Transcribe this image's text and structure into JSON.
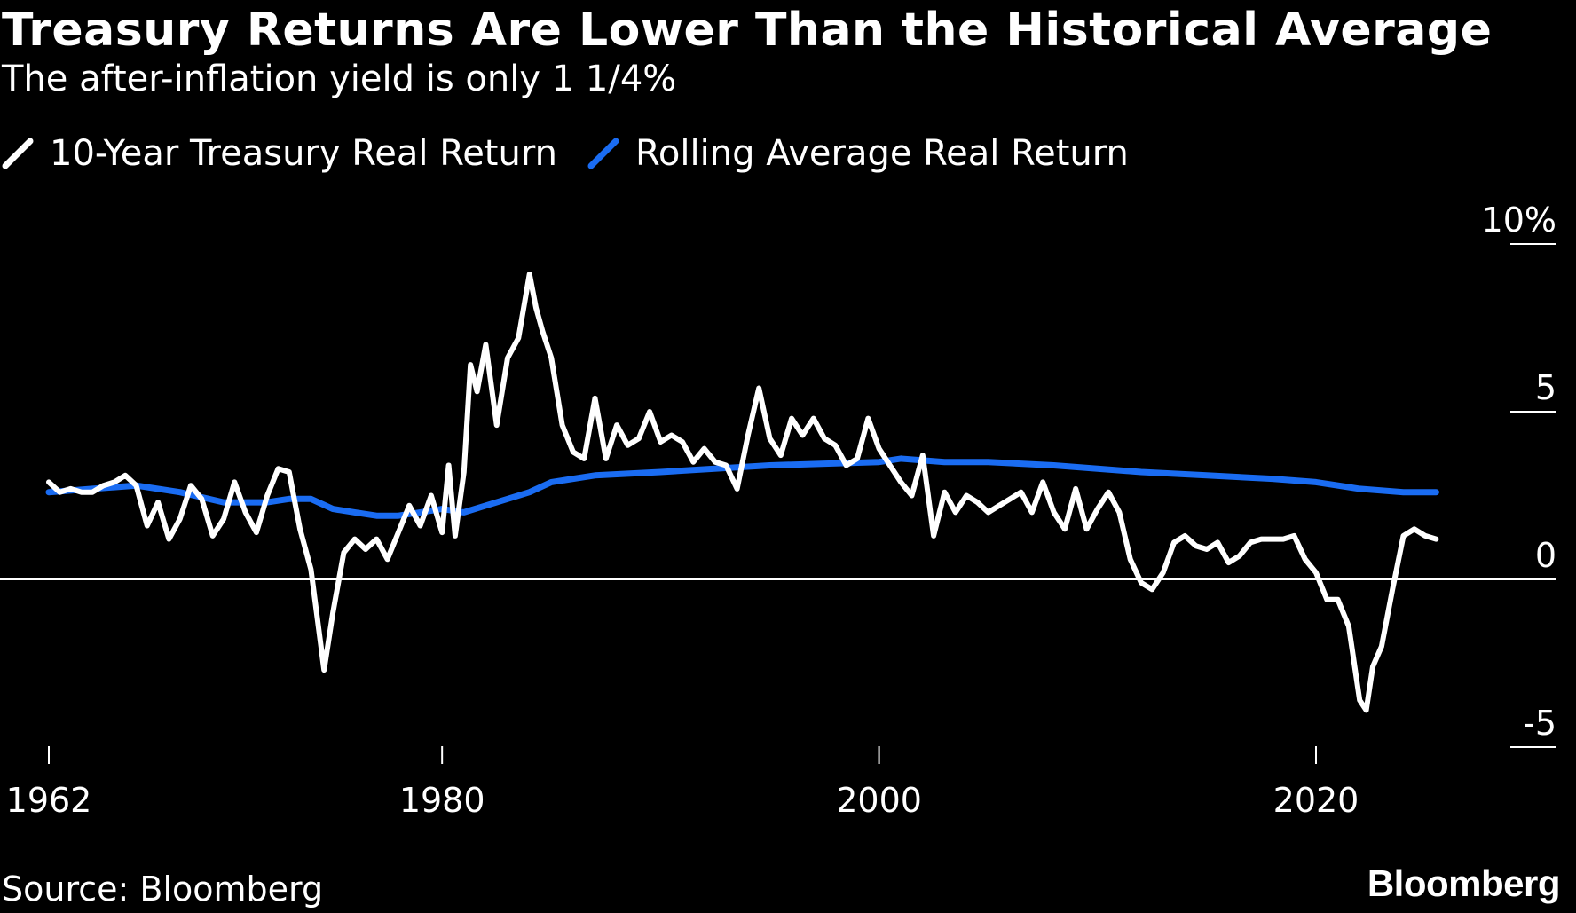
{
  "title": "Treasury Returns Are Lower Than the Historical Average",
  "subtitle": "The after-inflation yield is only 1 1/4%",
  "source": "Source: Bloomberg",
  "brand": "Bloomberg",
  "colors": {
    "background": "#000000",
    "treasury": "#ffffff",
    "rolling": "#1a6cf2",
    "zero_line": "#ffffff"
  },
  "chart_data": {
    "type": "line",
    "title": "Treasury Returns Are Lower Than the Historical Average",
    "subtitle": "The after-inflation yield is only 1 1/4%",
    "xlabel": "",
    "ylabel": "",
    "xlim": [
      1962,
      2026
    ],
    "ylim": [
      -5,
      10
    ],
    "x_ticks": [
      1962,
      1980,
      2000,
      2020
    ],
    "x_tick_labels": [
      "1962",
      "1980",
      "2000",
      "2020"
    ],
    "y_ticks": [
      10,
      5,
      0,
      -5
    ],
    "y_tick_labels": [
      "10%",
      "5",
      "0",
      "-5"
    ],
    "grid": false,
    "legend_position": "top-left",
    "series": [
      {
        "name": "10-Year Treasury Real Return",
        "color": "#ffffff",
        "x": [
          1962.0,
          1962.5,
          1963.0,
          1963.5,
          1964.0,
          1964.5,
          1965.0,
          1965.5,
          1966.0,
          1966.5,
          1967.0,
          1967.5,
          1968.0,
          1968.5,
          1969.0,
          1969.5,
          1970.0,
          1970.5,
          1971.0,
          1971.5,
          1972.0,
          1972.5,
          1973.0,
          1973.5,
          1974.0,
          1974.3,
          1974.6,
          1975.0,
          1975.5,
          1976.0,
          1976.5,
          1977.0,
          1977.5,
          1978.0,
          1978.5,
          1979.0,
          1979.5,
          1980.0,
          1980.3,
          1980.6,
          1981.0,
          1981.3,
          1981.6,
          1982.0,
          1982.5,
          1983.0,
          1983.5,
          1984.0,
          1984.3,
          1984.6,
          1985.0,
          1985.5,
          1986.0,
          1986.5,
          1987.0,
          1987.5,
          1988.0,
          1988.5,
          1989.0,
          1989.5,
          1990.0,
          1990.5,
          1991.0,
          1991.5,
          1992.0,
          1992.5,
          1993.0,
          1993.5,
          1994.0,
          1994.5,
          1995.0,
          1995.5,
          1996.0,
          1996.5,
          1997.0,
          1997.5,
          1998.0,
          1998.5,
          1999.0,
          1999.5,
          2000.0,
          2000.5,
          2001.0,
          2001.5,
          2002.0,
          2002.5,
          2003.0,
          2003.5,
          2004.0,
          2004.5,
          2005.0,
          2005.5,
          2006.0,
          2006.5,
          2007.0,
          2007.5,
          2008.0,
          2008.5,
          2009.0,
          2009.5,
          2010.0,
          2010.5,
          2011.0,
          2011.5,
          2012.0,
          2012.5,
          2013.0,
          2013.5,
          2014.0,
          2014.5,
          2015.0,
          2015.5,
          2016.0,
          2016.5,
          2017.0,
          2017.5,
          2018.0,
          2018.5,
          2019.0,
          2019.5,
          2020.0,
          2020.5,
          2021.0,
          2021.5,
          2022.0,
          2022.3,
          2022.6,
          2023.0,
          2023.5,
          2024.0,
          2024.5,
          2025.0,
          2025.5
        ],
        "y": [
          2.9,
          2.6,
          2.7,
          2.6,
          2.6,
          2.8,
          2.9,
          3.1,
          2.8,
          1.6,
          2.3,
          1.2,
          1.8,
          2.8,
          2.4,
          1.3,
          1.8,
          2.9,
          2.0,
          1.4,
          2.5,
          3.3,
          3.2,
          1.5,
          0.3,
          -1.2,
          -2.7,
          -1.0,
          0.8,
          1.2,
          0.9,
          1.2,
          0.6,
          1.4,
          2.2,
          1.6,
          2.5,
          1.4,
          3.4,
          1.3,
          3.2,
          6.4,
          5.6,
          7.0,
          4.6,
          6.6,
          7.2,
          9.1,
          8.1,
          7.4,
          6.6,
          4.6,
          3.8,
          3.6,
          5.4,
          3.6,
          4.6,
          4.0,
          4.2,
          5.0,
          4.1,
          4.3,
          4.1,
          3.5,
          3.9,
          3.5,
          3.4,
          2.7,
          4.3,
          5.7,
          4.2,
          3.7,
          4.8,
          4.3,
          4.8,
          4.2,
          4.0,
          3.4,
          3.6,
          4.8,
          3.9,
          3.4,
          2.9,
          2.5,
          3.7,
          1.3,
          2.6,
          2.0,
          2.5,
          2.3,
          2.0,
          2.2,
          2.4,
          2.6,
          2.0,
          2.9,
          2.0,
          1.5,
          2.7,
          1.5,
          2.1,
          2.6,
          2.0,
          0.6,
          -0.1,
          -0.3,
          0.2,
          1.1,
          1.3,
          1.0,
          0.9,
          1.1,
          0.5,
          0.7,
          1.1,
          1.2,
          1.2,
          1.2,
          1.3,
          0.6,
          0.2,
          -0.6,
          -0.6,
          -1.4,
          -3.6,
          -3.9,
          -2.6,
          -2.0,
          -0.3,
          1.3,
          1.5,
          1.3,
          1.2
        ]
      },
      {
        "name": "Rolling Average Real Return",
        "color": "#1a6cf2",
        "x": [
          1962,
          1964,
          1966,
          1968,
          1970,
          1972,
          1973,
          1974,
          1975,
          1976,
          1977,
          1978,
          1979,
          1980,
          1981,
          1982,
          1983,
          1984,
          1985,
          1987,
          1990,
          1995,
          2000,
          2001,
          2003,
          2005,
          2008,
          2010,
          2012,
          2015,
          2018,
          2020,
          2022,
          2024,
          2025.5
        ],
        "y": [
          2.6,
          2.7,
          2.8,
          2.6,
          2.3,
          2.3,
          2.4,
          2.4,
          2.1,
          2.0,
          1.9,
          1.9,
          2.0,
          2.1,
          2.0,
          2.2,
          2.4,
          2.6,
          2.9,
          3.1,
          3.2,
          3.4,
          3.5,
          3.6,
          3.5,
          3.5,
          3.4,
          3.3,
          3.2,
          3.1,
          3.0,
          2.9,
          2.7,
          2.6,
          2.6
        ]
      }
    ]
  }
}
